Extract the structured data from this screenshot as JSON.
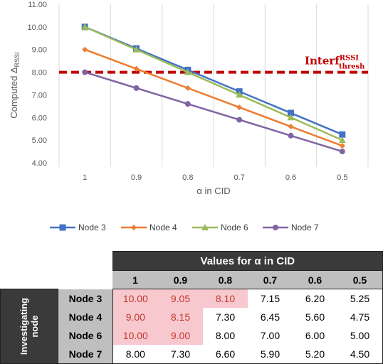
{
  "chart_data": [
    {
      "type": "line",
      "x": [
        "1",
        "0.9",
        "0.8",
        "0.7",
        "0.6",
        "0.5"
      ],
      "series": [
        {
          "name": "Node 3",
          "values": [
            10.0,
            9.05,
            8.1,
            7.15,
            6.2,
            5.25
          ],
          "color": "#4472c4",
          "marker": "square"
        },
        {
          "name": "Node 4",
          "values": [
            9.0,
            8.15,
            7.3,
            6.45,
            5.6,
            4.75
          ],
          "color": "#ed7d31",
          "marker": "diamond"
        },
        {
          "name": "Node 6",
          "values": [
            10.0,
            9.0,
            8.0,
            7.0,
            6.0,
            5.0
          ],
          "color": "#9bbb59",
          "marker": "triangle"
        },
        {
          "name": "Node 7",
          "values": [
            8.0,
            7.3,
            6.6,
            5.9,
            5.2,
            4.5
          ],
          "color": "#8064a2",
          "marker": "circle"
        }
      ],
      "threshold": {
        "value": 8.0,
        "label_main": "Interf",
        "label_sup": "RSSI",
        "label_sub": "thresh",
        "color": "#c00000"
      },
      "xlabel": "α in CID",
      "ylabel_main": "Computed Δ",
      "ylabel_sub": "RSSI",
      "ylim": [
        4.0,
        11.0
      ],
      "yticks": [
        "4.00",
        "5.00",
        "6.00",
        "7.00",
        "8.00",
        "9.00",
        "10.00",
        "11.00"
      ],
      "grid": "vertical",
      "legend_position": "bottom"
    },
    {
      "type": "table",
      "header_title": "Values for α in CID",
      "side_label_line1": "Investigating",
      "side_label_line2": "node",
      "columns": [
        "1",
        "0.9",
        "0.8",
        "0.7",
        "0.6",
        "0.5"
      ],
      "rows": [
        {
          "node": "Node 3",
          "values": [
            "10.00",
            "9.05",
            "8.10",
            "7.15",
            "6.20",
            "5.25"
          ],
          "highlight": [
            true,
            true,
            true,
            false,
            false,
            false
          ]
        },
        {
          "node": "Node 4",
          "values": [
            "9.00",
            "8.15",
            "7.30",
            "6.45",
            "5.60",
            "4.75"
          ],
          "highlight": [
            true,
            true,
            false,
            false,
            false,
            false
          ]
        },
        {
          "node": "Node 6",
          "values": [
            "10.00",
            "9.00",
            "8.00",
            "7.00",
            "6.00",
            "5.00"
          ],
          "highlight": [
            true,
            true,
            false,
            false,
            false,
            false
          ]
        },
        {
          "node": "Node 7",
          "values": [
            "8.00",
            "7.30",
            "6.60",
            "5.90",
            "5.20",
            "4.50"
          ],
          "highlight": [
            false,
            false,
            false,
            false,
            false,
            false
          ]
        }
      ]
    }
  ]
}
